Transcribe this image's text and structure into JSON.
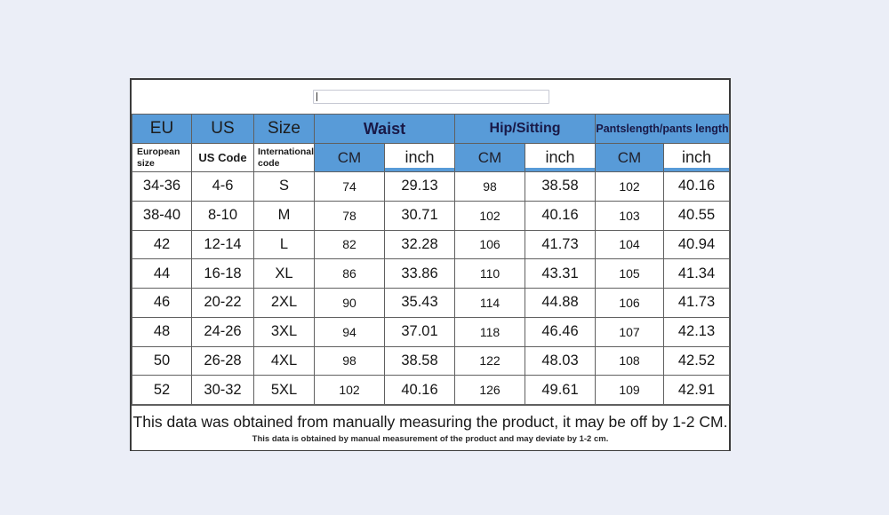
{
  "page": {
    "background_color": "#ebeef7"
  },
  "colors": {
    "header_blue": "#589BD8",
    "navy_text": "#191947",
    "grid_line": "#606060"
  },
  "caption_input": {
    "value": "",
    "placeholder": ""
  },
  "size_chart": {
    "header_groups": {
      "eu": "EU",
      "us": "US",
      "size": "Size",
      "waist": "Waist",
      "hip": "Hip/Sitting",
      "pants": "Pantslength/pants length"
    },
    "subheaders": {
      "european_size": "European size",
      "us_code": "US Code",
      "international_code": "International code",
      "waist_cm": "CM",
      "waist_inch": "inch",
      "hip_cm": "CM",
      "hip_inch": "inch",
      "pants_cm": "CM",
      "pants_inch": "inch"
    },
    "rows": [
      [
        "34-36",
        "4-6",
        "S",
        "74",
        "29.13",
        "98",
        "38.58",
        "102",
        "40.16"
      ],
      [
        "38-40",
        "8-10",
        "M",
        "78",
        "30.71",
        "102",
        "40.16",
        "103",
        "40.55"
      ],
      [
        "42",
        "12-14",
        "L",
        "82",
        "32.28",
        "106",
        "41.73",
        "104",
        "40.94"
      ],
      [
        "44",
        "16-18",
        "XL",
        "86",
        "33.86",
        "110",
        "43.31",
        "105",
        "41.34"
      ],
      [
        "46",
        "20-22",
        "2XL",
        "90",
        "35.43",
        "114",
        "44.88",
        "106",
        "41.73"
      ],
      [
        "48",
        "24-26",
        "3XL",
        "94",
        "37.01",
        "118",
        "46.46",
        "107",
        "42.13"
      ],
      [
        "50",
        "26-28",
        "4XL",
        "98",
        "38.58",
        "122",
        "48.03",
        "108",
        "42.52"
      ],
      [
        "52",
        "30-32",
        "5XL",
        "102",
        "40.16",
        "126",
        "49.61",
        "109",
        "42.91"
      ]
    ],
    "footnote_primary": "This data was obtained from manually measuring the product, it may be off by 1-2 CM.",
    "footnote_secondary": "This data is obtained by manual measurement of the product and may deviate by 1-2 cm."
  }
}
